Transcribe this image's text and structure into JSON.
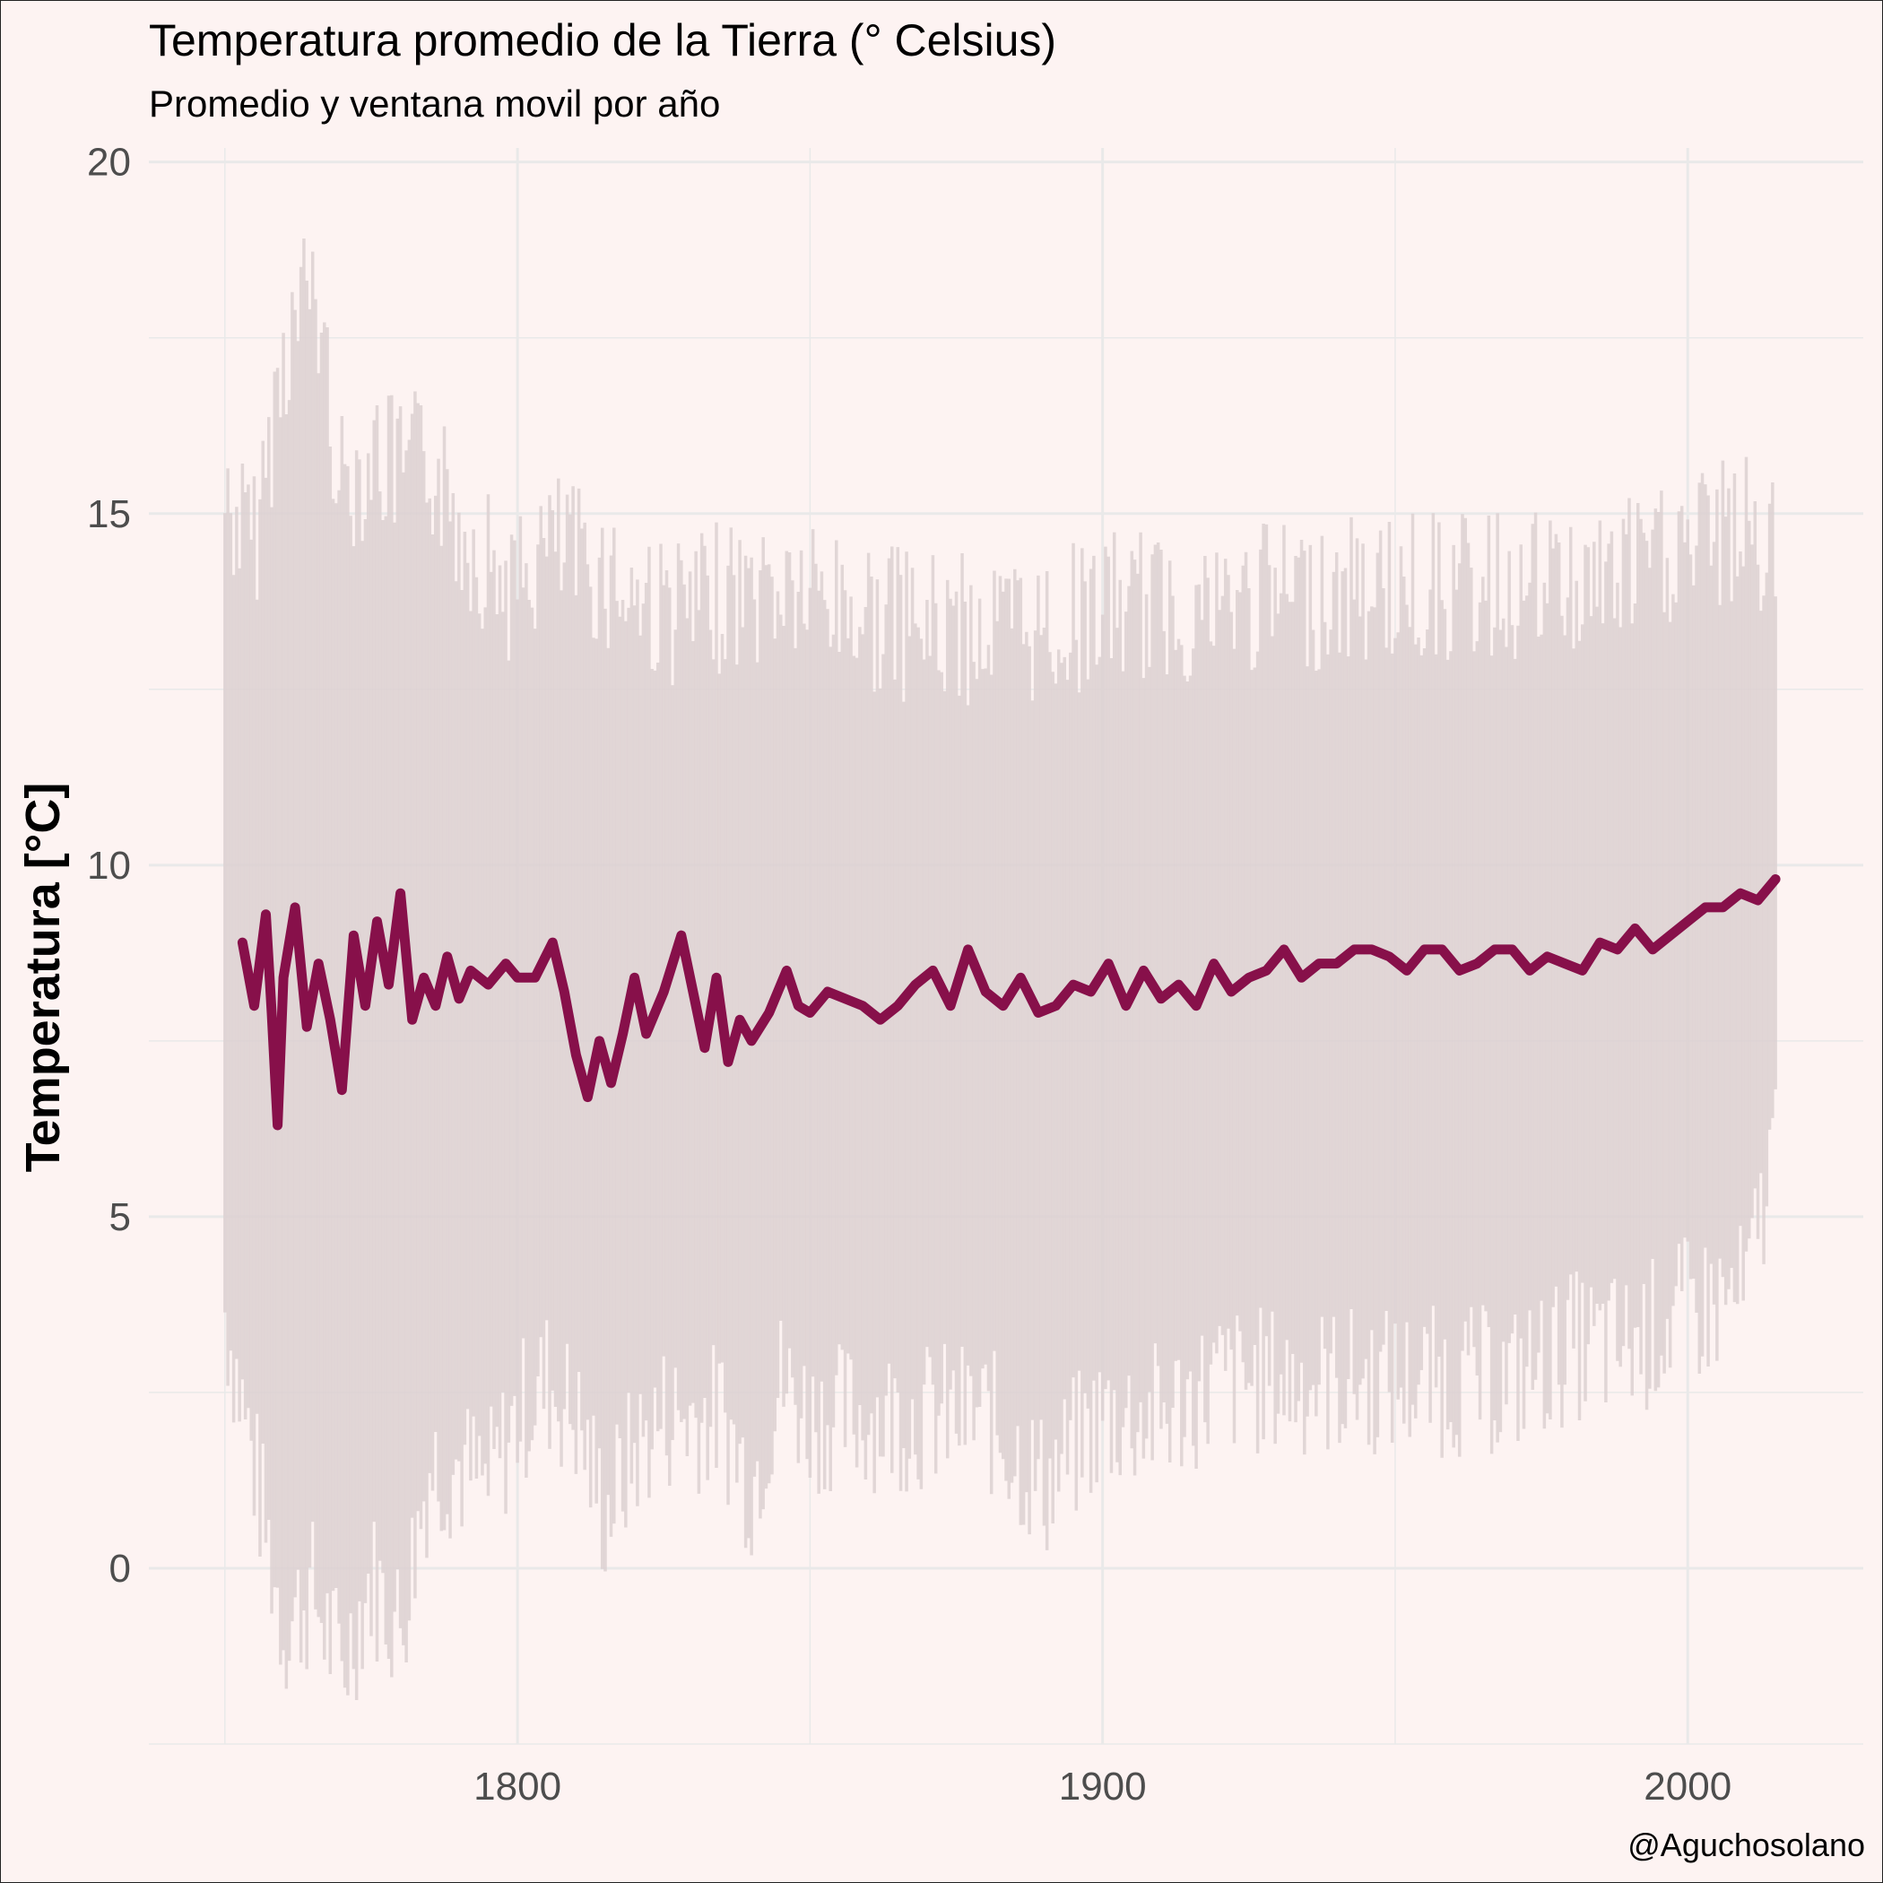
{
  "title": "Temperatura promedio de la Tierra (° Celsius)",
  "subtitle": "Promedio y ventana movil por año",
  "caption": "@Aguchosolano",
  "chart_data": {
    "type": "line",
    "title": "Temperatura promedio de la Tierra (° Celsius)",
    "subtitle": "Promedio y ventana movil por año",
    "xlabel": "",
    "ylabel": "Temperatura [°C]",
    "xlim": [
      1737,
      2030
    ],
    "ylim": [
      -2.5,
      20.2
    ],
    "x_ticks": [
      1800,
      1900,
      2000
    ],
    "y_ticks": [
      0,
      5,
      10,
      15,
      20
    ],
    "grid": true,
    "legend": "none",
    "colors": {
      "monthly": "#dcd0d1",
      "rolling": "#87104a",
      "grid": "#e9e9e9",
      "background": "#fdf3f2"
    },
    "series": [
      {
        "type": "monthly_band",
        "x": [
          1750,
          1755,
          1760,
          1765,
          1770,
          1775,
          1780,
          1785,
          1790,
          1795,
          1800,
          1805,
          1810,
          1815,
          1820,
          1825,
          1830,
          1835,
          1840,
          1845,
          1850,
          1860,
          1870,
          1880,
          1890,
          1900,
          1910,
          1920,
          1930,
          1940,
          1950,
          1960,
          1970,
          1980,
          1990,
          2000,
          2010,
          2015
        ],
        "min": [
          3.0,
          0.8,
          -1.5,
          -1.0,
          -2.1,
          -0.8,
          -1.5,
          0.8,
          0.8,
          0.5,
          1.5,
          2.0,
          1.5,
          0.1,
          1.0,
          1.5,
          1.5,
          1.5,
          0.5,
          2.0,
          1.5,
          1.5,
          1.5,
          1.5,
          0.5,
          1.5,
          1.5,
          2.0,
          2.0,
          2.0,
          2.0,
          2.0,
          2.0,
          2.5,
          2.5,
          3.0,
          3.2,
          5.5
        ],
        "max": [
          15.8,
          15.2,
          17.9,
          19.0,
          16.0,
          16.5,
          16.2,
          16.4,
          15.5,
          15.0,
          14.5,
          15.2,
          15.0,
          14.8,
          14.5,
          14.3,
          14.2,
          14.5,
          14.5,
          14.6,
          14.5,
          14.2,
          14.0,
          14.0,
          14.0,
          14.3,
          14.3,
          14.3,
          14.5,
          14.5,
          14.6,
          14.6,
          14.6,
          14.6,
          14.8,
          15.2,
          15.4,
          15.0
        ]
      },
      {
        "type": "rolling_mean",
        "x": [
          1753,
          1755,
          1757,
          1758,
          1759,
          1760,
          1762,
          1764,
          1766,
          1768,
          1770,
          1772,
          1774,
          1776,
          1778,
          1780,
          1782,
          1784,
          1786,
          1788,
          1790,
          1792,
          1795,
          1798,
          1800,
          1803,
          1806,
          1808,
          1810,
          1812,
          1814,
          1816,
          1818,
          1820,
          1822,
          1825,
          1828,
          1830,
          1832,
          1834,
          1836,
          1838,
          1840,
          1843,
          1846,
          1848,
          1850,
          1853,
          1856,
          1859,
          1862,
          1865,
          1868,
          1871,
          1874,
          1877,
          1880,
          1883,
          1886,
          1889,
          1892,
          1895,
          1898,
          1901,
          1904,
          1907,
          1910,
          1913,
          1916,
          1919,
          1922,
          1925,
          1928,
          1931,
          1934,
          1937,
          1940,
          1943,
          1946,
          1949,
          1952,
          1955,
          1958,
          1961,
          1964,
          1967,
          1970,
          1973,
          1976,
          1979,
          1982,
          1985,
          1988,
          1991,
          1994,
          1997,
          2000,
          2003,
          2006,
          2009,
          2012,
          2015
        ],
        "y": [
          8.9,
          8.0,
          9.3,
          7.9,
          6.3,
          8.4,
          9.4,
          7.7,
          8.6,
          7.8,
          6.8,
          9.0,
          8.0,
          9.2,
          8.3,
          9.6,
          7.8,
          8.4,
          8.0,
          8.7,
          8.1,
          8.5,
          8.3,
          8.6,
          8.4,
          8.4,
          8.9,
          8.2,
          7.3,
          6.7,
          7.5,
          6.9,
          7.6,
          8.4,
          7.6,
          8.2,
          9.0,
          8.2,
          7.4,
          8.4,
          7.2,
          7.8,
          7.5,
          7.9,
          8.5,
          8.0,
          7.9,
          8.2,
          8.1,
          8.0,
          7.8,
          8.0,
          8.3,
          8.5,
          8.0,
          8.8,
          8.2,
          8.0,
          8.4,
          7.9,
          8.0,
          8.3,
          8.2,
          8.6,
          8.0,
          8.5,
          8.1,
          8.3,
          8.0,
          8.6,
          8.2,
          8.4,
          8.5,
          8.8,
          8.4,
          8.6,
          8.6,
          8.8,
          8.8,
          8.7,
          8.5,
          8.8,
          8.8,
          8.5,
          8.6,
          8.8,
          8.8,
          8.5,
          8.7,
          8.6,
          8.5,
          8.9,
          8.8,
          9.1,
          8.8,
          9.0,
          9.2,
          9.4,
          9.4,
          9.6,
          9.5,
          9.8
        ]
      }
    ]
  }
}
